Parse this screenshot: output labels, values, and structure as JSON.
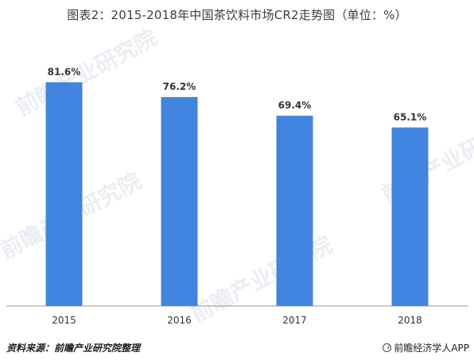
{
  "title": "图表2：2015-2018年中国茶饮料市场CR2走势图（单位：%）",
  "source": "资料来源：前瞻产业研究院整理",
  "brand": "前瞻经济学人APP",
  "watermark": "前瞻产业研究院",
  "colors": {
    "bar": "#4285e0",
    "axis": "#999999",
    "label": "#333333"
  },
  "chart_data": {
    "type": "bar",
    "categories": [
      "2015",
      "2016",
      "2017",
      "2018"
    ],
    "values": [
      81.6,
      76.2,
      69.4,
      65.1
    ],
    "data_labels": [
      "81.6%",
      "76.2%",
      "69.4%",
      "65.1%"
    ],
    "title": "图表2：2015-2018年中国茶饮料市场CR2走势图（单位：%）",
    "xlabel": "",
    "ylabel": "",
    "ylim": [
      0,
      100
    ],
    "grid": false,
    "legend": "none"
  }
}
